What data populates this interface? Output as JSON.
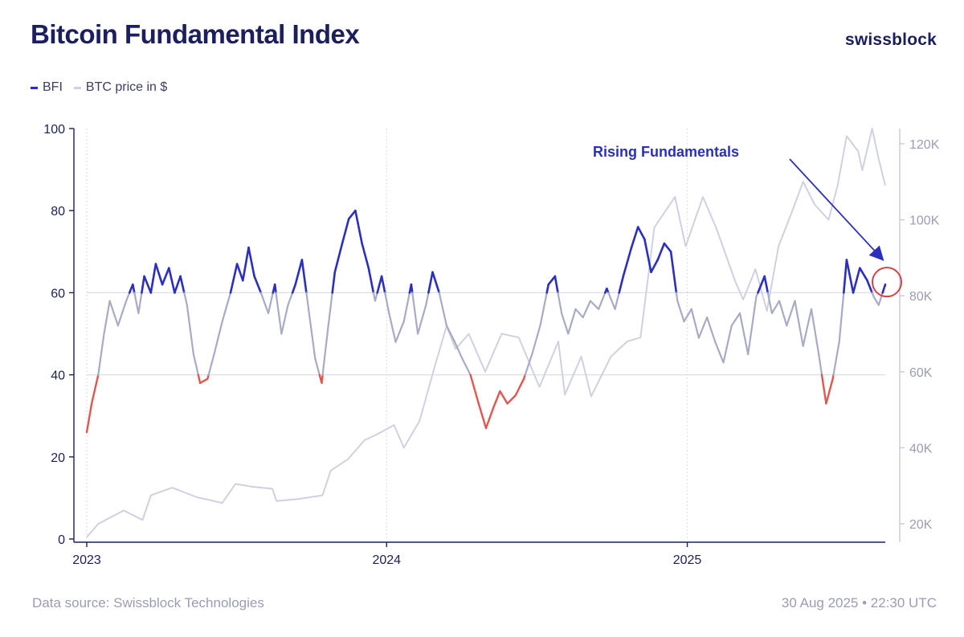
{
  "header": {
    "title": "Bitcoin Fundamental Index",
    "brand": "swissblock"
  },
  "footer": {
    "source": "Data source: Swissblock Technologies",
    "timestamp": "30 Aug 2025 • 22:30 UTC"
  },
  "colors": {
    "bfi": "#2a2fbf",
    "bfi_neutral": "#a8abc4",
    "bfi_low": "#e0574f",
    "price": "#cfd1df",
    "title": "#1b1f5e",
    "annotation": "#2a2fbf",
    "circle": "#d04545"
  },
  "chart_data": {
    "type": "line",
    "legend": [
      {
        "label": "BFI",
        "color": "#2a2fbf"
      },
      {
        "label": "BTC price in $",
        "color": "#cfd1df"
      }
    ],
    "x_ticks": [
      "2023",
      "2024",
      "2025"
    ],
    "x_range": [
      "2023-01-01",
      "2025-08-30"
    ],
    "y_left": {
      "range": [
        0,
        100
      ],
      "ticks": [
        "0",
        "20",
        "40",
        "60",
        "80",
        "100"
      ]
    },
    "y_right": {
      "range": [
        16000,
        124000
      ],
      "ticks": [
        "20K",
        "40K",
        "60K",
        "80K",
        "100K",
        "120K"
      ]
    },
    "thresholds": [
      40,
      60
    ],
    "annotation": {
      "text": "Rising Fundamentals"
    },
    "series": [
      {
        "name": "BFI",
        "axis": "left",
        "points": [
          [
            "2023-01-01",
            26
          ],
          [
            "2023-01-07",
            33
          ],
          [
            "2023-01-15",
            40
          ],
          [
            "2023-01-22",
            50
          ],
          [
            "2023-01-29",
            58
          ],
          [
            "2023-02-08",
            52
          ],
          [
            "2023-02-18",
            58
          ],
          [
            "2023-02-26",
            62
          ],
          [
            "2023-03-05",
            55
          ],
          [
            "2023-03-12",
            64
          ],
          [
            "2023-03-20",
            60
          ],
          [
            "2023-03-26",
            67
          ],
          [
            "2023-04-03",
            62
          ],
          [
            "2023-04-11",
            66
          ],
          [
            "2023-04-18",
            60
          ],
          [
            "2023-04-25",
            64
          ],
          [
            "2023-05-03",
            57
          ],
          [
            "2023-05-11",
            45
          ],
          [
            "2023-05-19",
            38
          ],
          [
            "2023-05-28",
            39
          ],
          [
            "2023-06-05",
            45
          ],
          [
            "2023-06-15",
            53
          ],
          [
            "2023-06-25",
            60
          ],
          [
            "2023-07-03",
            67
          ],
          [
            "2023-07-10",
            63
          ],
          [
            "2023-07-17",
            71
          ],
          [
            "2023-07-24",
            64
          ],
          [
            "2023-08-01",
            60
          ],
          [
            "2023-08-10",
            55
          ],
          [
            "2023-08-18",
            62
          ],
          [
            "2023-08-26",
            50
          ],
          [
            "2023-09-03",
            57
          ],
          [
            "2023-09-12",
            62
          ],
          [
            "2023-09-20",
            68
          ],
          [
            "2023-09-28",
            56
          ],
          [
            "2023-10-06",
            44
          ],
          [
            "2023-10-14",
            38
          ],
          [
            "2023-10-22",
            52
          ],
          [
            "2023-10-30",
            65
          ],
          [
            "2023-11-08",
            72
          ],
          [
            "2023-11-16",
            78
          ],
          [
            "2023-11-24",
            80
          ],
          [
            "2023-12-02",
            72
          ],
          [
            "2023-12-10",
            66
          ],
          [
            "2023-12-18",
            58
          ],
          [
            "2023-12-26",
            64
          ],
          [
            "2024-01-04",
            55
          ],
          [
            "2024-01-12",
            48
          ],
          [
            "2024-01-22",
            53
          ],
          [
            "2024-01-31",
            62
          ],
          [
            "2024-02-08",
            50
          ],
          [
            "2024-02-18",
            57
          ],
          [
            "2024-02-26",
            65
          ],
          [
            "2024-03-05",
            60
          ],
          [
            "2024-03-14",
            52
          ],
          [
            "2024-03-24",
            48
          ],
          [
            "2024-04-02",
            44
          ],
          [
            "2024-04-12",
            40
          ],
          [
            "2024-04-22",
            33
          ],
          [
            "2024-05-01",
            27
          ],
          [
            "2024-05-10",
            32
          ],
          [
            "2024-05-18",
            36
          ],
          [
            "2024-05-27",
            33
          ],
          [
            "2024-06-06",
            35
          ],
          [
            "2024-06-16",
            39
          ],
          [
            "2024-06-26",
            45
          ],
          [
            "2024-07-06",
            52
          ],
          [
            "2024-07-16",
            62
          ],
          [
            "2024-07-24",
            64
          ],
          [
            "2024-08-01",
            55
          ],
          [
            "2024-08-09",
            50
          ],
          [
            "2024-08-18",
            56
          ],
          [
            "2024-08-27",
            54
          ],
          [
            "2024-09-05",
            58
          ],
          [
            "2024-09-15",
            56
          ],
          [
            "2024-09-25",
            61
          ],
          [
            "2024-10-05",
            56
          ],
          [
            "2024-10-15",
            64
          ],
          [
            "2024-10-25",
            71
          ],
          [
            "2024-11-02",
            76
          ],
          [
            "2024-11-10",
            73
          ],
          [
            "2024-11-18",
            65
          ],
          [
            "2024-11-26",
            68
          ],
          [
            "2024-12-04",
            72
          ],
          [
            "2024-12-12",
            70
          ],
          [
            "2024-12-20",
            58
          ],
          [
            "2024-12-28",
            53
          ],
          [
            "2025-01-06",
            56
          ],
          [
            "2025-01-15",
            49
          ],
          [
            "2025-01-25",
            54
          ],
          [
            "2025-02-04",
            48
          ],
          [
            "2025-02-14",
            43
          ],
          [
            "2025-02-24",
            52
          ],
          [
            "2025-03-06",
            55
          ],
          [
            "2025-03-16",
            45
          ],
          [
            "2025-03-26",
            59
          ],
          [
            "2025-04-05",
            64
          ],
          [
            "2025-04-14",
            55
          ],
          [
            "2025-04-23",
            58
          ],
          [
            "2025-05-02",
            52
          ],
          [
            "2025-05-12",
            58
          ],
          [
            "2025-05-22",
            47
          ],
          [
            "2025-06-01",
            56
          ],
          [
            "2025-06-10",
            45
          ],
          [
            "2025-06-19",
            33
          ],
          [
            "2025-06-27",
            39
          ],
          [
            "2025-07-05",
            48
          ],
          [
            "2025-07-14",
            68
          ],
          [
            "2025-07-22",
            60
          ],
          [
            "2025-07-30",
            66
          ],
          [
            "2025-08-08",
            63
          ],
          [
            "2025-08-16",
            59
          ],
          [
            "2025-08-22",
            57
          ],
          [
            "2025-08-30",
            62
          ]
        ]
      },
      {
        "name": "BTC price in $",
        "axis": "right",
        "points": [
          [
            "2023-01-01",
            16500
          ],
          [
            "2023-01-15",
            20000
          ],
          [
            "2023-02-15",
            23500
          ],
          [
            "2023-03-10",
            21000
          ],
          [
            "2023-03-20",
            27500
          ],
          [
            "2023-04-15",
            29500
          ],
          [
            "2023-05-15",
            27000
          ],
          [
            "2023-06-15",
            25500
          ],
          [
            "2023-07-01",
            30500
          ],
          [
            "2023-07-20",
            29800
          ],
          [
            "2023-08-15",
            29200
          ],
          [
            "2023-08-20",
            26000
          ],
          [
            "2023-09-15",
            26500
          ],
          [
            "2023-10-15",
            27500
          ],
          [
            "2023-10-25",
            34000
          ],
          [
            "2023-11-15",
            37000
          ],
          [
            "2023-12-05",
            42000
          ],
          [
            "2023-12-20",
            43500
          ],
          [
            "2024-01-10",
            46000
          ],
          [
            "2024-01-22",
            40000
          ],
          [
            "2024-02-10",
            47000
          ],
          [
            "2024-02-28",
            61000
          ],
          [
            "2024-03-14",
            72000
          ],
          [
            "2024-03-25",
            66000
          ],
          [
            "2024-04-10",
            70000
          ],
          [
            "2024-04-30",
            60000
          ],
          [
            "2024-05-20",
            70000
          ],
          [
            "2024-06-10",
            69000
          ],
          [
            "2024-07-05",
            56000
          ],
          [
            "2024-07-28",
            68000
          ],
          [
            "2024-08-05",
            54000
          ],
          [
            "2024-08-25",
            64000
          ],
          [
            "2024-09-06",
            53500
          ],
          [
            "2024-09-30",
            64000
          ],
          [
            "2024-10-20",
            68000
          ],
          [
            "2024-11-05",
            69000
          ],
          [
            "2024-11-22",
            98000
          ],
          [
            "2024-12-17",
            106000
          ],
          [
            "2024-12-30",
            93000
          ],
          [
            "2025-01-20",
            106000
          ],
          [
            "2025-02-05",
            98000
          ],
          [
            "2025-02-28",
            84000
          ],
          [
            "2025-03-10",
            79000
          ],
          [
            "2025-03-25",
            87000
          ],
          [
            "2025-04-08",
            76000
          ],
          [
            "2025-04-22",
            93000
          ],
          [
            "2025-05-10",
            103000
          ],
          [
            "2025-05-22",
            110000
          ],
          [
            "2025-06-05",
            104000
          ],
          [
            "2025-06-22",
            100000
          ],
          [
            "2025-07-03",
            109000
          ],
          [
            "2025-07-14",
            122000
          ],
          [
            "2025-07-28",
            118000
          ],
          [
            "2025-08-02",
            113000
          ],
          [
            "2025-08-14",
            124000
          ],
          [
            "2025-08-22",
            116000
          ],
          [
            "2025-08-30",
            109000
          ]
        ]
      }
    ]
  }
}
